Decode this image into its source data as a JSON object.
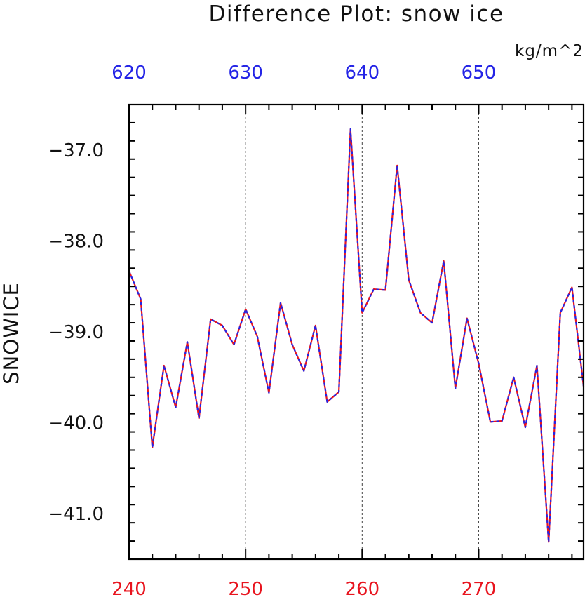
{
  "chart_data": {
    "type": "line",
    "title": "Difference Plot: snow ice",
    "units": "kg/m^2",
    "ylabel": "SNOWICE",
    "xlabel": "",
    "xlim": [
      240,
      279
    ],
    "ylim": [
      -41.5,
      -36.5
    ],
    "y_ticks": [
      -37.0,
      -38.0,
      -39.0,
      -40.0,
      -41.0
    ],
    "y_tick_labels": [
      "−37.0",
      "−38.0",
      "−39.0",
      "−40.0",
      "−41.0"
    ],
    "x_bottom_ticks": [
      240,
      250,
      260,
      270
    ],
    "x_bottom_tick_labels": [
      "240",
      "250",
      "260",
      "270"
    ],
    "x_bottom_color": "#e8141e",
    "x_top_ticks": [
      620,
      630,
      640,
      650
    ],
    "x_top_tick_labels": [
      "620",
      "630",
      "640",
      "650"
    ],
    "x_top_color": "#2424e6",
    "x_top_offset": 380,
    "grid": "vertical-dotted",
    "series": [
      {
        "color": "#e8141e",
        "style": "solid",
        "x": [
          240,
          241,
          242,
          243,
          244,
          245,
          246,
          247,
          248,
          249,
          250,
          251,
          252,
          253,
          254,
          255,
          256,
          257,
          258,
          259,
          260,
          261,
          262,
          263,
          264,
          265,
          266,
          267,
          268,
          269,
          270,
          271,
          272,
          273,
          274,
          275,
          276,
          277,
          278,
          279
        ],
        "values": [
          -38.33,
          -38.64,
          -40.27,
          -39.37,
          -39.83,
          -39.11,
          -39.95,
          -38.86,
          -38.93,
          -39.14,
          -38.75,
          -39.05,
          -39.67,
          -38.68,
          -39.14,
          -39.43,
          -38.93,
          -39.77,
          -39.66,
          -36.77,
          -38.79,
          -38.53,
          -38.54,
          -37.17,
          -38.43,
          -38.79,
          -38.9,
          -38.22,
          -39.62,
          -38.85,
          -39.35,
          -39.99,
          -39.98,
          -39.5,
          -40.05,
          -39.37,
          -41.31,
          -38.79,
          -38.51,
          -39.6
        ]
      },
      {
        "color": "#2424e6",
        "style": "dashed",
        "x": [
          240,
          241,
          242,
          243,
          244,
          245,
          246,
          247,
          248,
          249,
          250,
          251,
          252,
          253,
          254,
          255,
          256,
          257,
          258,
          259,
          260,
          261,
          262,
          263,
          264,
          265,
          266,
          267,
          268,
          269,
          270,
          271,
          272,
          273,
          274,
          275,
          276,
          277,
          278,
          279
        ],
        "values": [
          -38.33,
          -38.64,
          -40.27,
          -39.37,
          -39.83,
          -39.11,
          -39.95,
          -38.86,
          -38.93,
          -39.14,
          -38.75,
          -39.05,
          -39.67,
          -38.68,
          -39.14,
          -39.43,
          -38.93,
          -39.77,
          -39.66,
          -36.77,
          -38.79,
          -38.53,
          -38.54,
          -37.17,
          -38.43,
          -38.79,
          -38.9,
          -38.22,
          -39.62,
          -38.85,
          -39.35,
          -39.99,
          -39.98,
          -39.5,
          -40.05,
          -39.37,
          -41.31,
          -38.79,
          -38.51,
          -39.6
        ]
      }
    ]
  }
}
